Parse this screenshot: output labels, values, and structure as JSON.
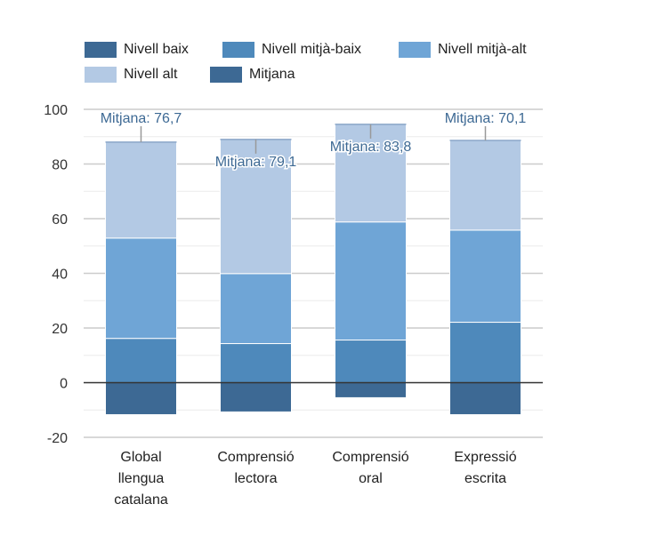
{
  "chart_data": {
    "type": "bar",
    "stacked": true,
    "title": "",
    "xlabel": "",
    "ylabel": "",
    "ylim": [
      -20,
      100
    ],
    "yticks": [
      -20,
      0,
      20,
      40,
      60,
      80,
      100
    ],
    "grid": true,
    "legend_position": "top-left",
    "categories": [
      [
        "Global",
        "llengua",
        "catalana"
      ],
      [
        "Comprensió",
        "lectora"
      ],
      [
        "Comprensió",
        "oral"
      ],
      [
        "Expressió",
        "escrita"
      ]
    ],
    "series": [
      {
        "name": "Nivell baix",
        "color": "#3d6994",
        "values": [
          -11.7,
          -10.7,
          -5.5,
          -11.7
        ]
      },
      {
        "name": "Nivell mitjà-baix",
        "color": "#4e89bb",
        "values": [
          16.2,
          14.3,
          15.6,
          22.1
        ]
      },
      {
        "name": "Nivell mitjà-alt",
        "color": "#6fa5d6",
        "values": [
          36.7,
          25.6,
          43.2,
          33.7
        ]
      },
      {
        "name": "Nivell alt",
        "color": "#b3c9e4",
        "values": [
          35.1,
          49.1,
          35.7,
          32.8
        ]
      }
    ],
    "mitjana": {
      "name": "Mitjana",
      "color": "#3d6994",
      "values": [
        76.7,
        79.1,
        83.8,
        70.1
      ],
      "labels": [
        "Mitjana: 76,7",
        "Mitjana: 79,1",
        "Mitjana: 83,8",
        "Mitjana: 70,1"
      ]
    }
  },
  "legend": [
    {
      "label": "Nivell baix",
      "color": "#3d6994"
    },
    {
      "label": "Nivell mitjà-baix",
      "color": "#4e89bb"
    },
    {
      "label": "Nivell mitjà-alt",
      "color": "#6fa5d6"
    },
    {
      "label": "Nivell alt",
      "color": "#b3c9e4"
    },
    {
      "label": "Mitjana",
      "color": "#3d6994"
    }
  ]
}
